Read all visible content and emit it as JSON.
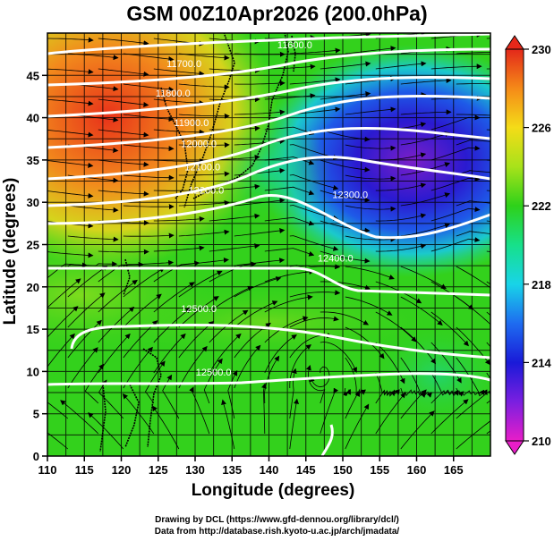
{
  "title": "GSM 00Z10Apr2026 (200.0hPa)",
  "x_axis": {
    "label": "Longitude (degrees)",
    "range": [
      110,
      170
    ],
    "ticks": [
      110,
      115,
      120,
      125,
      130,
      135,
      140,
      145,
      150,
      155,
      160,
      165
    ]
  },
  "y_axis": {
    "label": "Latitude  (degrees)",
    "range": [
      0,
      50
    ],
    "ticks": [
      0,
      5,
      10,
      15,
      20,
      25,
      30,
      35,
      40,
      45
    ]
  },
  "colorbar": {
    "min": 210,
    "max": 230,
    "ticks": [
      210,
      214,
      218,
      222,
      226,
      230
    ]
  },
  "contour_labels": [
    {
      "text": "11600.0",
      "lon": 143.5,
      "lat": 48.2
    },
    {
      "text": "11700.0",
      "lon": 128.5,
      "lat": 46.0
    },
    {
      "text": "11800.0",
      "lon": 127.0,
      "lat": 42.5
    },
    {
      "text": "11900.0",
      "lon": 129.5,
      "lat": 39.0
    },
    {
      "text": "12000.0",
      "lon": 130.5,
      "lat": 36.5
    },
    {
      "text": "12100.0",
      "lon": 131.0,
      "lat": 33.8
    },
    {
      "text": "12200.0",
      "lon": 131.5,
      "lat": 31.0
    },
    {
      "text": "12300.0",
      "lon": 151.0,
      "lat": 30.5
    },
    {
      "text": "12400.0",
      "lon": 149.0,
      "lat": 23.0
    },
    {
      "text": "12500.0",
      "lon": 130.5,
      "lat": 17.0
    },
    {
      "text": "12500.0",
      "lon": 132.5,
      "lat": 9.5
    }
  ],
  "credits": {
    "line1": "Drawing by DCL (https://www.gfd-dennou.org/library/dcl/)",
    "line2": "Data from http://database.rish.kyoto-u.ac.jp/arch/jmadata/"
  }
}
